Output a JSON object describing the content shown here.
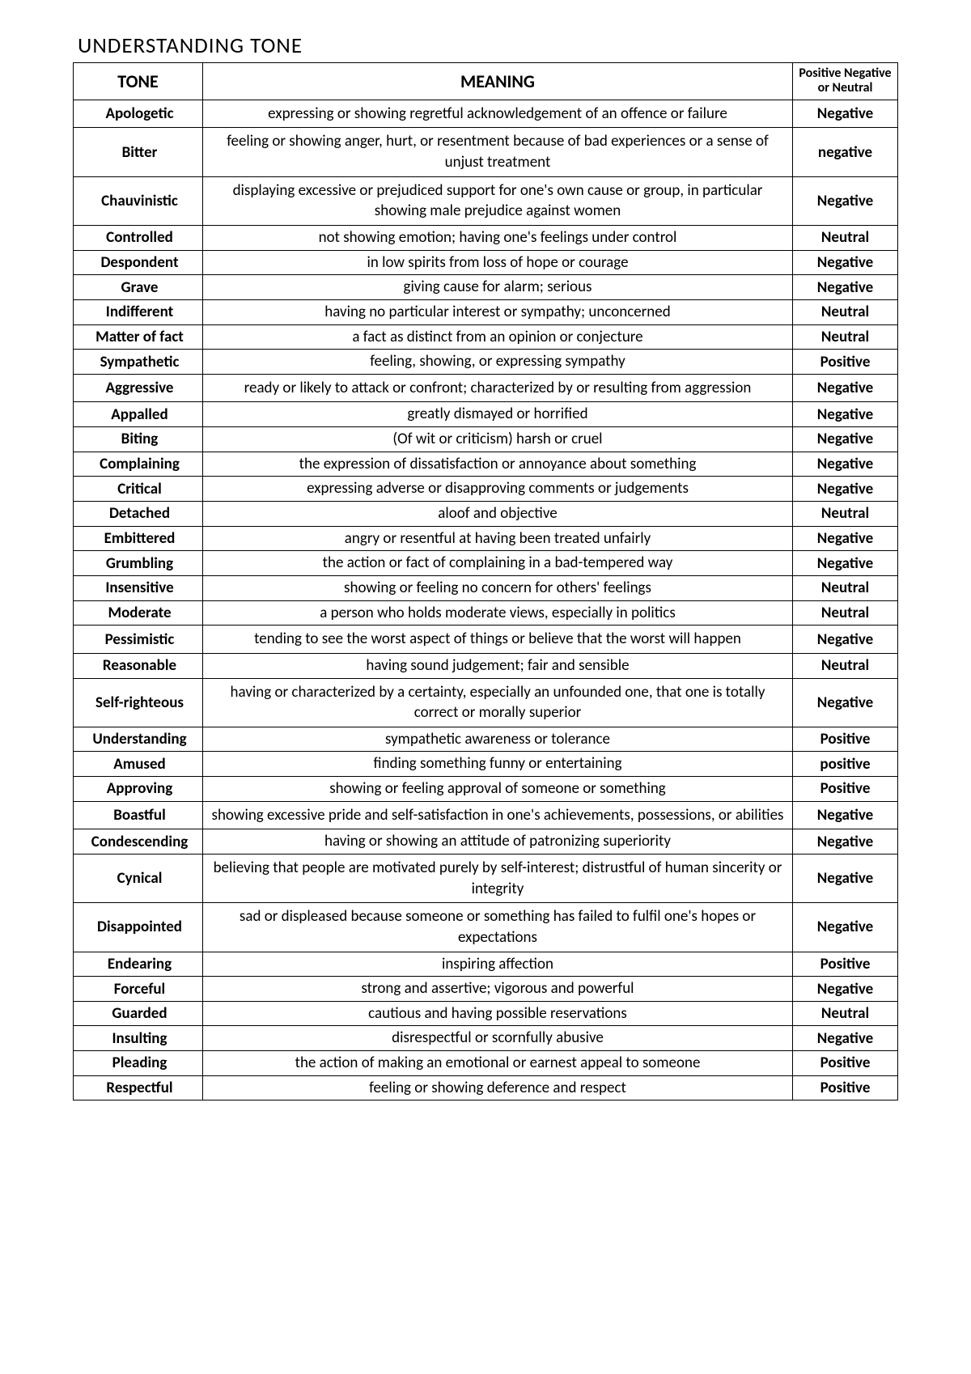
{
  "title": "UNDERSTANDING TONE",
  "headers": {
    "tone": "TONE",
    "meaning": "MEANING",
    "class": "Positive Negative or Neutral"
  },
  "rows": [
    {
      "tone": "Apologetic",
      "meaning": "expressing or showing regretful acknowledgement of an offence or failure",
      "class": "Negative"
    },
    {
      "tone": "Bitter",
      "meaning": "feeling or showing anger, hurt, or resentment because of bad experiences or a sense of unjust treatment",
      "class": "negative"
    },
    {
      "tone": "Chauvinistic",
      "meaning": "displaying excessive or prejudiced support for one's own cause or group, in particular showing male prejudice against women",
      "class": "Negative"
    },
    {
      "tone": "Controlled",
      "meaning": "not showing emotion; having one's feelings under control",
      "class": "Neutral"
    },
    {
      "tone": "Despondent",
      "meaning": "in low spirits from loss of hope or courage",
      "class": "Negative"
    },
    {
      "tone": "Grave",
      "meaning": "giving cause for alarm; serious",
      "class": "Negative"
    },
    {
      "tone": "Indifferent",
      "meaning": "having no particular interest or sympathy; unconcerned",
      "class": "Neutral"
    },
    {
      "tone": "Matter of fact",
      "meaning": "a fact as distinct from an opinion or conjecture",
      "class": "Neutral"
    },
    {
      "tone": "Sympathetic",
      "meaning": "feeling, showing, or expressing sympathy",
      "class": "Positive"
    },
    {
      "tone": "Aggressive",
      "meaning": "ready or likely to attack or confront; characterized by or resulting from aggression",
      "class": "Negative"
    },
    {
      "tone": "Appalled",
      "meaning": "greatly dismayed or horrified",
      "class": "Negative"
    },
    {
      "tone": "Biting",
      "meaning": "(Of wit or criticism) harsh or cruel",
      "class": "Negative"
    },
    {
      "tone": "Complaining",
      "meaning": "the expression of dissatisfaction or annoyance about something",
      "class": "Negative"
    },
    {
      "tone": "Critical",
      "meaning": "expressing adverse or disapproving comments or judgements",
      "class": "Negative"
    },
    {
      "tone": "Detached",
      "meaning": "aloof and objective",
      "class": "Neutral"
    },
    {
      "tone": "Embittered",
      "meaning": "angry or resentful at having been treated unfairly",
      "class": "Negative"
    },
    {
      "tone": "Grumbling",
      "meaning": "the action or fact of complaining in a bad-tempered way",
      "class": "Negative"
    },
    {
      "tone": "Insensitive",
      "meaning": "showing or feeling no concern for others' feelings",
      "class": "Neutral"
    },
    {
      "tone": "Moderate",
      "meaning": "a person who holds moderate views, especially in politics",
      "class": "Neutral"
    },
    {
      "tone": "Pessimistic",
      "meaning": "tending to see the worst aspect of things or believe that the worst will happen",
      "class": "Negative"
    },
    {
      "tone": "Reasonable",
      "meaning": "having sound judgement; fair and sensible",
      "class": "Neutral"
    },
    {
      "tone": "Self-righteous",
      "meaning": "having or characterized by a certainty, especially an unfounded one, that one is totally correct or morally superior",
      "class": "Negative"
    },
    {
      "tone": "Understanding",
      "meaning": "sympathetic awareness or tolerance",
      "class": "Positive"
    },
    {
      "tone": "Amused",
      "meaning": "finding something funny or entertaining",
      "class": "positive"
    },
    {
      "tone": "Approving",
      "meaning": "showing or feeling approval of someone or something",
      "class": "Positive"
    },
    {
      "tone": "Boastful",
      "meaning": "showing excessive pride and self-satisfaction in one's achievements, possessions, or abilities",
      "class": "Negative"
    },
    {
      "tone": "Condescending",
      "meaning": "having or showing an attitude of patronizing superiority",
      "class": "Negative"
    },
    {
      "tone": "Cynical",
      "meaning": "believing that people are motivated purely by self-interest; distrustful of human sincerity or integrity",
      "class": "Negative"
    },
    {
      "tone": "Disappointed",
      "meaning": "sad or displeased because someone or something has failed to fulfil one's hopes or expectations",
      "class": "Negative"
    },
    {
      "tone": "Endearing",
      "meaning": "inspiring affection",
      "class": "Positive"
    },
    {
      "tone": "Forceful",
      "meaning": "strong and assertive; vigorous and powerful",
      "class": "Negative"
    },
    {
      "tone": "Guarded",
      "meaning": "cautious and having possible reservations",
      "class": "Neutral"
    },
    {
      "tone": "Insulting",
      "meaning": "disrespectful or scornfully abusive",
      "class": "Negative"
    },
    {
      "tone": "Pleading",
      "meaning": "the action of making an emotional or earnest appeal to someone",
      "class": "Positive"
    },
    {
      "tone": "Respectful",
      "meaning": "feeling or showing deference and respect",
      "class": "Positive"
    }
  ]
}
